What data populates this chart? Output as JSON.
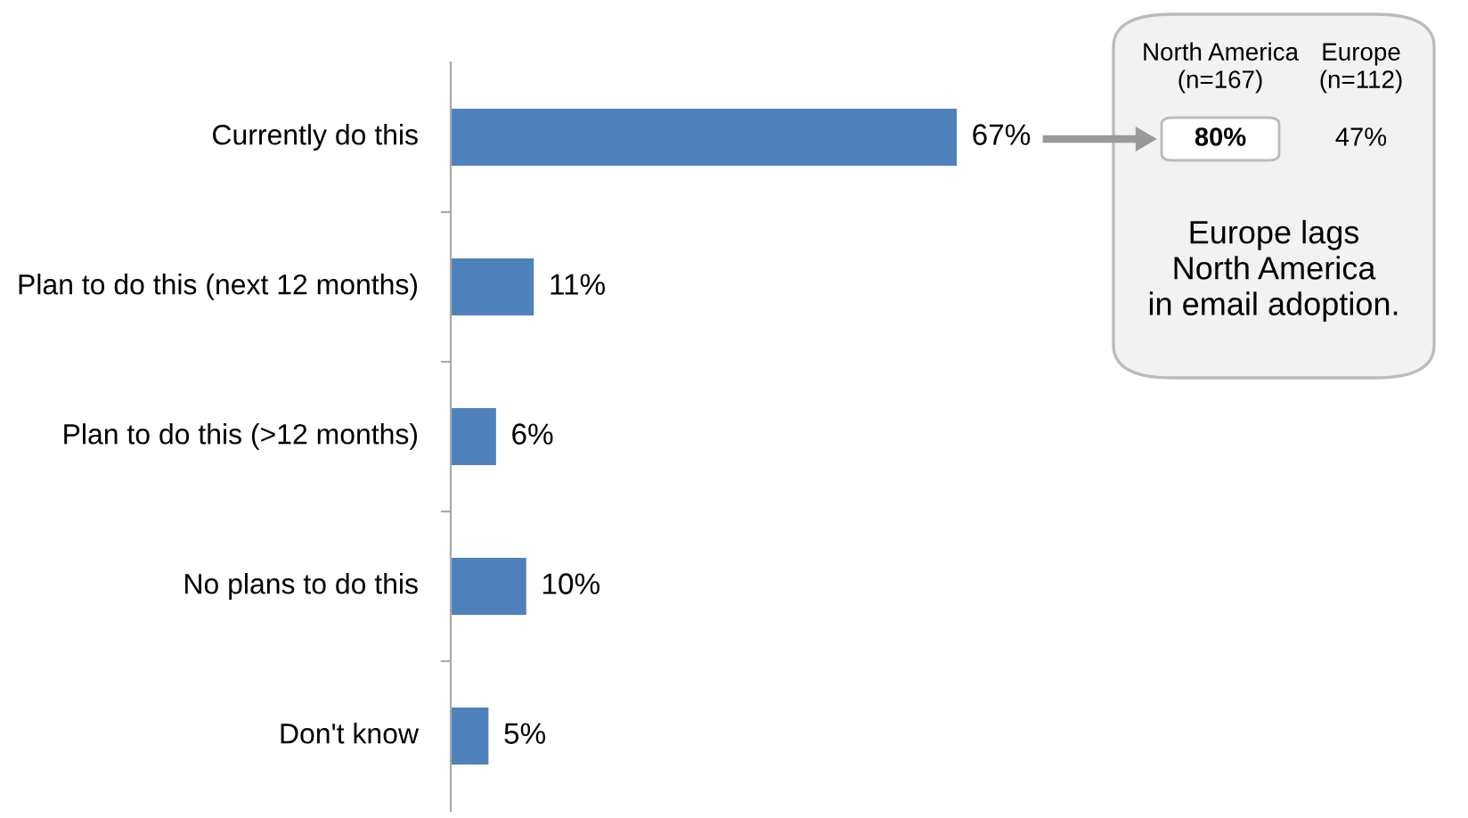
{
  "chart_data": {
    "type": "bar",
    "orientation": "horizontal",
    "categories": [
      "Currently do this",
      "Plan to do this (next 12 months)",
      "Plan to do this (>12 months)",
      "No plans to do this",
      "Don't know"
    ],
    "values": [
      67,
      11,
      6,
      10,
      5
    ],
    "value_labels": [
      "67%",
      "11%",
      "6%",
      "10%",
      "5%"
    ],
    "color": "#4f81bd",
    "annotations": [
      "North America\n(n=167)",
      "Europe\n(n=112)",
      "80%",
      "47%",
      "Europe lags\nNorth America\nin email adoption."
    ]
  }
}
